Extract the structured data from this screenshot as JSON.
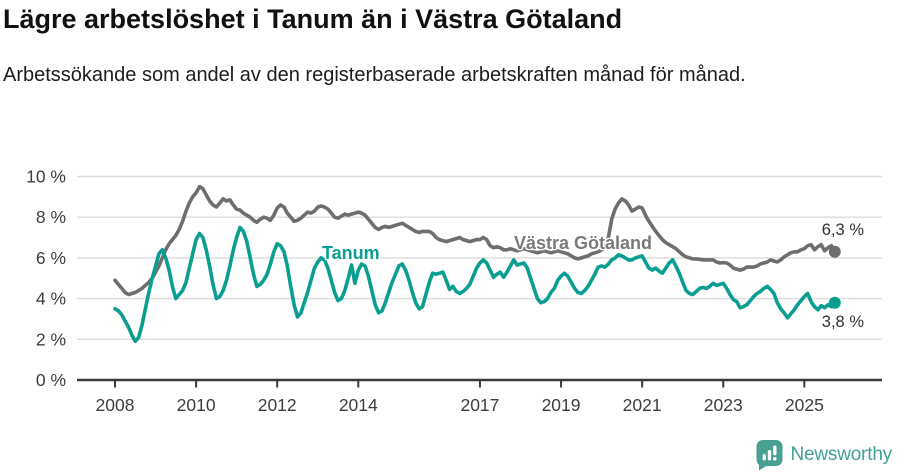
{
  "header": {
    "title": "Lägre arbetslöshet i Tanum än i Västra Götaland",
    "subtitle": "Arbetssökande som andel av den registerbaserade arbetskraften månad för månad."
  },
  "footer": {
    "brand": "Newsworthy"
  },
  "colors": {
    "tanum_line": "#0a9e91",
    "vastra_gotaland_line": "#6e6e6e",
    "brand_teal": "#47a096",
    "axis": "#3a3a3a",
    "grid": "#dcdcdc"
  },
  "chart_data": {
    "type": "line",
    "title": "Lägre arbetslöshet i Tanum än i Västra Götaland",
    "subtitle": "Arbetssökande som andel av den registerbaserade arbetskraften månad för månad.",
    "unit": "percent",
    "frequency": "monthly",
    "x_start": "2008-01",
    "x_end": "2025-10",
    "grid": true,
    "legend_position": "inline-labels",
    "ylim": [
      0,
      10.05
    ],
    "y_axis": {
      "ticks": [
        {
          "value": 0,
          "label": "0 %"
        },
        {
          "value": 2,
          "label": "2 %"
        },
        {
          "value": 4,
          "label": "4 %"
        },
        {
          "value": 6,
          "label": "6 %"
        },
        {
          "value": 8,
          "label": "8 %"
        },
        {
          "value": 10,
          "label": "10 %"
        }
      ]
    },
    "x_axis": {
      "ticks": [
        {
          "year": 2008,
          "label": "2008"
        },
        {
          "year": 2010,
          "label": "2010"
        },
        {
          "year": 2012,
          "label": "2012"
        },
        {
          "year": 2014,
          "label": "2014"
        },
        {
          "year": 2017,
          "label": "2017"
        },
        {
          "year": 2019,
          "label": "2019"
        },
        {
          "year": 2021,
          "label": "2021"
        },
        {
          "year": 2023,
          "label": "2023"
        },
        {
          "year": 2025,
          "label": "2025"
        }
      ]
    },
    "series": [
      {
        "name": "Västra Götaland",
        "color": "#6e6e6e",
        "end_label": "6,3 %",
        "last_value": 6.3,
        "values": [
          4.9,
          4.7,
          4.5,
          4.3,
          4.2,
          4.25,
          4.3,
          4.4,
          4.5,
          4.65,
          4.8,
          5.0,
          5.3,
          5.6,
          6.0,
          6.4,
          6.7,
          6.9,
          7.1,
          7.4,
          7.8,
          8.3,
          8.7,
          9.0,
          9.2,
          9.5,
          9.4,
          9.1,
          8.8,
          8.6,
          8.5,
          8.7,
          8.9,
          8.8,
          8.85,
          8.6,
          8.4,
          8.35,
          8.2,
          8.1,
          8.0,
          7.85,
          7.75,
          7.9,
          8.0,
          7.95,
          7.85,
          8.1,
          8.45,
          8.6,
          8.5,
          8.2,
          8.0,
          7.8,
          7.85,
          7.95,
          8.1,
          8.25,
          8.2,
          8.3,
          8.5,
          8.55,
          8.5,
          8.4,
          8.2,
          8.0,
          7.95,
          8.05,
          8.15,
          8.1,
          8.15,
          8.2,
          8.25,
          8.2,
          8.1,
          7.9,
          7.7,
          7.5,
          7.4,
          7.5,
          7.55,
          7.5,
          7.55,
          7.6,
          7.65,
          7.7,
          7.6,
          7.5,
          7.4,
          7.3,
          7.25,
          7.3,
          7.3,
          7.3,
          7.2,
          7.0,
          6.9,
          6.85,
          6.8,
          6.85,
          6.9,
          6.95,
          7.0,
          6.9,
          6.85,
          6.8,
          6.85,
          6.9,
          6.9,
          7.0,
          6.9,
          6.6,
          6.5,
          6.55,
          6.5,
          6.4,
          6.4,
          6.45,
          6.4,
          6.35,
          6.4,
          6.45,
          6.4,
          6.35,
          6.3,
          6.25,
          6.3,
          6.35,
          6.3,
          6.25,
          6.3,
          6.35,
          6.3,
          6.25,
          6.2,
          6.1,
          6.0,
          5.95,
          6.0,
          6.05,
          6.1,
          6.2,
          6.25,
          6.3,
          6.4,
          6.5,
          7.0,
          7.9,
          8.4,
          8.7,
          8.9,
          8.8,
          8.6,
          8.3,
          8.4,
          8.5,
          8.45,
          8.1,
          7.8,
          7.55,
          7.3,
          7.1,
          6.9,
          6.75,
          6.65,
          6.55,
          6.45,
          6.3,
          6.15,
          6.05,
          6.0,
          5.95,
          5.95,
          5.93,
          5.9,
          5.9,
          5.9,
          5.9,
          5.8,
          5.75,
          5.77,
          5.75,
          5.65,
          5.5,
          5.45,
          5.4,
          5.45,
          5.55,
          5.55,
          5.55,
          5.6,
          5.7,
          5.75,
          5.8,
          5.9,
          5.85,
          5.8,
          5.9,
          6.05,
          6.15,
          6.25,
          6.3,
          6.3,
          6.4,
          6.45,
          6.6,
          6.65,
          6.4,
          6.55,
          6.65,
          6.35,
          6.5,
          6.6,
          6.3
        ]
      },
      {
        "name": "Tanum",
        "color": "#0a9e91",
        "end_label": "3,8 %",
        "last_value": 3.8,
        "values": [
          3.5,
          3.4,
          3.2,
          2.9,
          2.6,
          2.2,
          1.9,
          2.1,
          2.7,
          3.5,
          4.3,
          5.0,
          5.6,
          6.2,
          6.4,
          6.0,
          5.4,
          4.6,
          4.0,
          4.2,
          4.4,
          4.8,
          5.5,
          6.2,
          6.9,
          7.2,
          7.0,
          6.4,
          5.6,
          4.7,
          4.0,
          4.1,
          4.4,
          4.9,
          5.6,
          6.4,
          7.0,
          7.5,
          7.3,
          6.8,
          6.0,
          5.2,
          4.6,
          4.7,
          4.9,
          5.2,
          5.7,
          6.3,
          6.7,
          6.6,
          6.3,
          5.6,
          4.6,
          3.7,
          3.1,
          3.3,
          3.8,
          4.3,
          4.9,
          5.5,
          5.8,
          6.0,
          5.9,
          5.5,
          4.9,
          4.3,
          3.9,
          4.0,
          4.4,
          5.0,
          5.65,
          4.75,
          5.4,
          5.7,
          5.6,
          5.1,
          4.4,
          3.7,
          3.3,
          3.4,
          3.8,
          4.3,
          4.8,
          5.2,
          5.6,
          5.7,
          5.4,
          4.9,
          4.3,
          3.8,
          3.5,
          3.6,
          4.2,
          4.8,
          5.25,
          5.2,
          5.25,
          5.3,
          4.9,
          4.45,
          4.6,
          4.35,
          4.25,
          4.35,
          4.5,
          4.7,
          5.1,
          5.5,
          5.75,
          5.9,
          5.75,
          5.4,
          5.05,
          5.2,
          5.3,
          5.05,
          5.3,
          5.6,
          5.9,
          5.65,
          5.7,
          5.75,
          5.5,
          5.0,
          4.5,
          4.0,
          3.8,
          3.85,
          4.0,
          4.3,
          4.5,
          4.9,
          5.1,
          5.25,
          5.1,
          4.8,
          4.5,
          4.3,
          4.25,
          4.4,
          4.6,
          4.9,
          5.2,
          5.55,
          5.6,
          5.55,
          5.7,
          5.9,
          6.0,
          6.15,
          6.1,
          6.0,
          5.9,
          5.9,
          6.0,
          6.05,
          6.1,
          5.8,
          5.5,
          5.4,
          5.5,
          5.35,
          5.25,
          5.5,
          5.75,
          5.9,
          5.6,
          5.25,
          4.8,
          4.4,
          4.25,
          4.2,
          4.35,
          4.5,
          4.55,
          4.5,
          4.6,
          4.75,
          4.65,
          4.7,
          4.75,
          4.5,
          4.2,
          3.95,
          3.85,
          3.55,
          3.6,
          3.7,
          3.9,
          4.1,
          4.25,
          4.35,
          4.5,
          4.6,
          4.45,
          4.25,
          3.8,
          3.5,
          3.3,
          3.05,
          3.25,
          3.45,
          3.7,
          3.9,
          4.1,
          4.25,
          3.85,
          3.6,
          3.45,
          3.65,
          3.55,
          3.7,
          3.6,
          3.8
        ]
      }
    ]
  }
}
